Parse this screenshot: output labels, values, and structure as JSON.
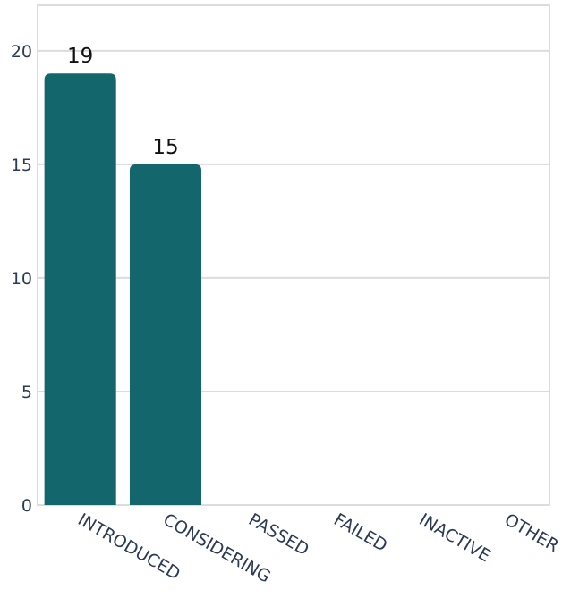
{
  "chart_data": {
    "type": "bar",
    "categories": [
      "INTRODUCED",
      "CONSIDERING",
      "PASSED",
      "FAILED",
      "INACTIVE",
      "OTHER"
    ],
    "series": [
      {
        "values": [
          19,
          15,
          0,
          0,
          0,
          0
        ]
      }
    ],
    "data_labels": [
      "19",
      "15",
      "",
      "",
      "",
      ""
    ],
    "yticks": [
      0,
      5,
      10,
      15,
      20
    ],
    "ytick_labels": [
      "0",
      "5",
      "10",
      "15",
      "20"
    ],
    "ylim": [
      0,
      22
    ],
    "grid": true,
    "title": "",
    "xlabel": "",
    "ylabel": "",
    "colors": {
      "bar": "#13666b",
      "grid": "#dcdcdc",
      "frame": "#d0d0d0",
      "tick_text": "#2b3a55"
    }
  }
}
